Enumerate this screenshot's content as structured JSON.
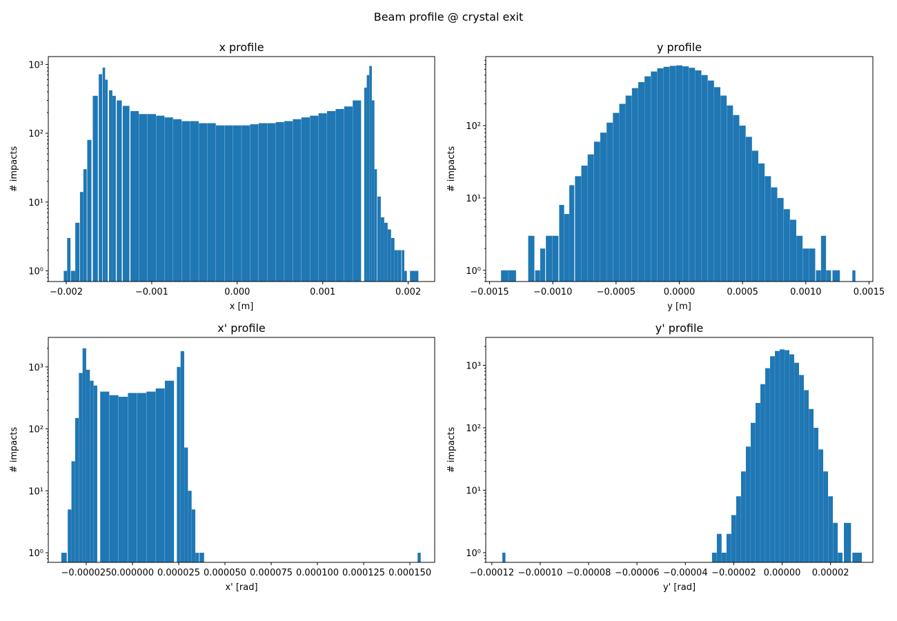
{
  "suptitle": "Beam profile @ crystal exit",
  "colors": {
    "bar": "#1f77b4",
    "axis": "#000000",
    "background": "#ffffff"
  },
  "chart_data": [
    {
      "type": "bar",
      "title": "x profile",
      "xlabel": "x [m]",
      "ylabel": "# impacts",
      "yscale": "log",
      "grid": false,
      "xlim": [
        -0.00221,
        0.00231
      ],
      "ylim": [
        0.7,
        1300
      ],
      "xticks": [
        -0.002,
        -0.001,
        0.0,
        0.001,
        0.002
      ],
      "xtick_labels": [
        "−0.002",
        "−0.001",
        "0.000",
        "0.001",
        "0.002"
      ],
      "yticks": [
        1,
        10,
        100,
        1000
      ],
      "ytick_labels": [
        "10⁰",
        "10¹",
        "10²",
        "10³"
      ],
      "hist_x": [
        -0.00201,
        -0.00197,
        -0.00192,
        -0.00187,
        -0.00182,
        -0.00178,
        -0.00173,
        -0.00166,
        -0.0016,
        -0.00156,
        -0.00153,
        -0.00148,
        -0.00144,
        -0.00138,
        -0.0013,
        -0.0012,
        -0.0011,
        -0.001,
        -0.0009,
        -0.0008,
        -0.0007,
        -0.0006,
        -0.0005,
        -0.0004,
        -0.0003,
        -0.0002,
        -0.0001,
        0.0,
        0.0001,
        0.0002,
        0.0003,
        0.0004,
        0.0005,
        0.0006,
        0.0007,
        0.0008,
        0.0009,
        0.001,
        0.0011,
        0.0012,
        0.0013,
        0.0014,
        0.0015,
        0.00153,
        0.00156,
        0.00159,
        0.00162,
        0.00166,
        0.0017,
        0.00174,
        0.00178,
        0.00182,
        0.00186,
        0.0019,
        0.00194,
        0.00197,
        0.00207
      ],
      "hist_y": [
        1,
        3,
        1,
        5,
        14,
        30,
        80,
        350,
        720,
        900,
        600,
        420,
        350,
        300,
        250,
        210,
        190,
        190,
        180,
        170,
        160,
        150,
        150,
        140,
        140,
        130,
        130,
        130,
        130,
        135,
        140,
        140,
        145,
        150,
        160,
        170,
        180,
        195,
        210,
        225,
        245,
        300,
        460,
        700,
        950,
        300,
        30,
        12,
        6,
        5,
        4,
        3,
        2,
        2,
        2,
        1,
        1
      ]
    },
    {
      "type": "bar",
      "title": "y profile",
      "xlabel": "y [m]",
      "ylabel": "# impacts",
      "yscale": "log",
      "grid": false,
      "xlim": [
        -0.00153,
        0.00153
      ],
      "ylim": [
        0.7,
        900
      ],
      "xticks": [
        -0.0015,
        -0.001,
        -0.0005,
        0.0,
        0.0005,
        0.001,
        0.0015
      ],
      "xtick_labels": [
        "−0.0015",
        "−0.0010",
        "−0.0005",
        "0.0000",
        "0.0005",
        "0.0010",
        "0.0015"
      ],
      "yticks": [
        1,
        10,
        100
      ],
      "ytick_labels": [
        "10⁰",
        "10¹",
        "10²"
      ],
      "hist_x": [
        -0.00138,
        -0.00132,
        -0.00117,
        -0.00112,
        -0.00108,
        -0.00103,
        -0.00098,
        -0.00093,
        -0.00089,
        -0.00085,
        -0.0008,
        -0.00075,
        -0.0007,
        -0.00065,
        -0.0006,
        -0.00055,
        -0.0005,
        -0.00045,
        -0.0004,
        -0.00035,
        -0.0003,
        -0.00025,
        -0.0002,
        -0.00015,
        -0.0001,
        -5e-05,
        0.0,
        5e-05,
        0.0001,
        0.00015,
        0.0002,
        0.00025,
        0.0003,
        0.00035,
        0.0004,
        0.00045,
        0.0005,
        0.00055,
        0.0006,
        0.00065,
        0.0007,
        0.00075,
        0.0008,
        0.00085,
        0.0009,
        0.00095,
        0.001,
        0.00105,
        0.0011,
        0.00114,
        0.00118,
        0.00124,
        0.00138
      ],
      "hist_y": [
        1,
        1,
        3,
        1,
        2,
        3,
        3,
        8,
        6,
        15,
        20,
        28,
        40,
        60,
        80,
        110,
        150,
        200,
        260,
        330,
        400,
        480,
        560,
        620,
        650,
        670,
        680,
        660,
        630,
        580,
        500,
        420,
        340,
        260,
        190,
        140,
        100,
        70,
        45,
        30,
        20,
        14,
        10,
        7,
        5,
        3,
        2,
        2,
        1,
        3,
        1,
        1,
        1
      ]
    },
    {
      "type": "bar",
      "title": "x' profile",
      "xlabel": "x' [rad]",
      "ylabel": "# impacts",
      "yscale": "log",
      "grid": false,
      "xlim": [
        -4.55e-05,
        0.0001634
      ],
      "ylim": [
        0.7,
        3000
      ],
      "xticks": [
        -2.5e-05,
        0.0,
        2.5e-05,
        5e-05,
        7.5e-05,
        0.0001,
        0.000125,
        0.00015
      ],
      "xtick_labels": [
        "−0.000025",
        "0.000000",
        "0.000025",
        "0.000050",
        "0.000075",
        "0.000100",
        "0.000125",
        "0.000150"
      ],
      "yticks": [
        1,
        10,
        100,
        1000
      ],
      "ytick_labels": [
        "10⁰",
        "10¹",
        "10²",
        "10³"
      ],
      "hist_x": [
        -3.7e-05,
        -3.4e-05,
        -3.2e-05,
        -3e-05,
        -2.8e-05,
        -2.6e-05,
        -2.4e-05,
        -2.2e-05,
        -2e-05,
        -1.5e-05,
        -1e-05,
        -5e-06,
        0.0,
        5e-06,
        1e-05,
        1.5e-05,
        2e-05,
        2.5e-05,
        2.7e-05,
        2.9e-05,
        3.1e-05,
        3.3e-05,
        3.5e-05,
        3.75e-05,
        0.000155
      ],
      "hist_y": [
        1,
        5,
        30,
        150,
        800,
        2000,
        900,
        600,
        500,
        400,
        350,
        330,
        380,
        380,
        400,
        450,
        600,
        1000,
        1800,
        50,
        10,
        5,
        1,
        1,
        1
      ]
    },
    {
      "type": "bar",
      "title": "y' profile",
      "xlabel": "y' [rad]",
      "ylabel": "# impacts",
      "yscale": "log",
      "grid": false,
      "xlim": [
        -0.0001225,
        3.75e-05
      ],
      "ylim": [
        0.7,
        2800
      ],
      "xticks": [
        -0.00012,
        -0.0001,
        -8e-05,
        -6e-05,
        -4e-05,
        -2e-05,
        0.0,
        2e-05
      ],
      "xtick_labels": [
        "−0.00012",
        "−0.00010",
        "−0.00008",
        "−0.00006",
        "−0.00004",
        "−0.00002",
        "0.00000",
        "0.00002"
      ],
      "yticks": [
        1,
        10,
        100,
        1000
      ],
      "ytick_labels": [
        "10⁰",
        "10¹",
        "10²",
        "10³"
      ],
      "hist_x": [
        -0.000115,
        -2.8e-05,
        -2.6e-05,
        -2.4e-05,
        -2.2e-05,
        -2e-05,
        -1.8e-05,
        -1.6e-05,
        -1.4e-05,
        -1.2e-05,
        -1e-05,
        -8e-06,
        -6e-06,
        -4e-06,
        -2e-06,
        0.0,
        2e-06,
        4e-06,
        6e-06,
        8e-06,
        1e-05,
        1.2e-05,
        1.4e-05,
        1.6e-05,
        1.8e-05,
        2e-05,
        2.2e-05,
        2.4e-05,
        2.7e-05,
        3.1e-05
      ],
      "hist_y": [
        1,
        1,
        2,
        1,
        2,
        4,
        8,
        20,
        50,
        120,
        250,
        500,
        900,
        1400,
        1700,
        1800,
        1750,
        1500,
        1100,
        700,
        400,
        200,
        100,
        45,
        20,
        8,
        3,
        1,
        3,
        1
      ]
    }
  ]
}
